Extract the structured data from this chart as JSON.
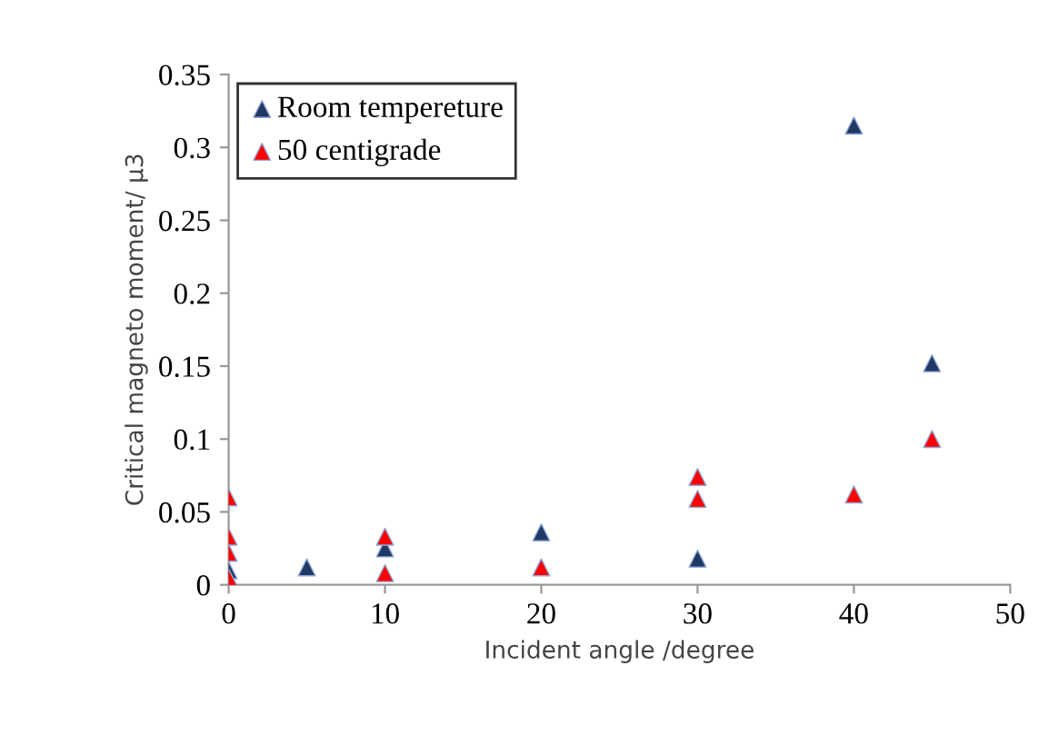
{
  "chart_data": {
    "type": "scatter",
    "xlabel": "Incident angle /degree",
    "ylabel": "Critical magneto moment/ μ3",
    "xlim": [
      0,
      50
    ],
    "xticks": [
      0,
      10,
      20,
      30,
      40,
      50
    ],
    "ylim": [
      0,
      0.35
    ],
    "yticks": [
      0,
      0.05,
      0.1,
      0.15,
      0.2,
      0.25,
      0.3,
      0.35
    ],
    "marker": "triangle",
    "grid": false,
    "legend": "top left",
    "series": [
      {
        "name": "Room tempereture",
        "color": "#1f3864",
        "x": [
          0,
          5,
          10,
          20,
          30,
          40,
          45
        ],
        "values": [
          0.01,
          0.012,
          0.025,
          0.036,
          0.018,
          0.315,
          0.152
        ]
      },
      {
        "name": "50 centigrade",
        "color": "#ff0000",
        "x": [
          0,
          0,
          0,
          0,
          10,
          10,
          20,
          30,
          30,
          40,
          45
        ],
        "values": [
          0.06,
          0.033,
          0.022,
          0.005,
          0.033,
          0.008,
          0.012,
          0.074,
          0.059,
          0.062,
          0.1
        ]
      }
    ]
  }
}
